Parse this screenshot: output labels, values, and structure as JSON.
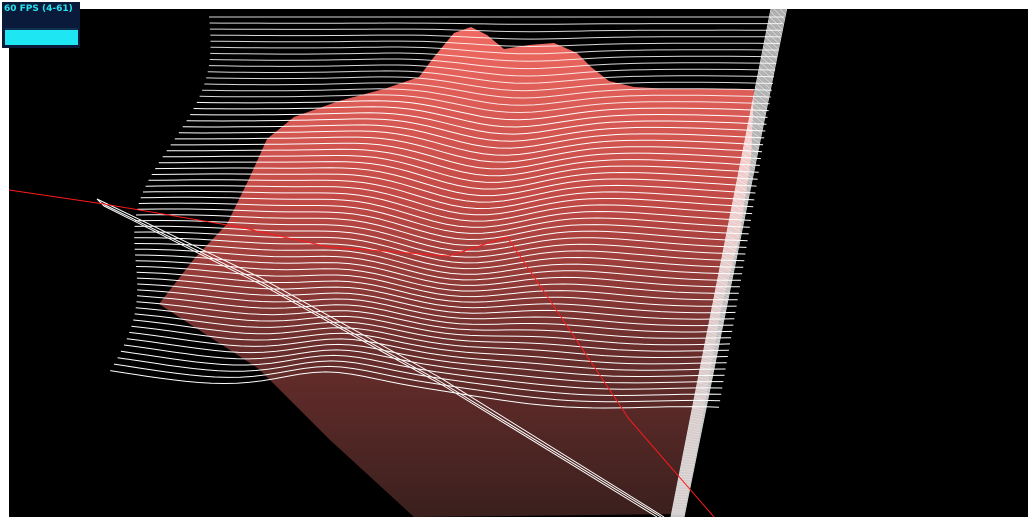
{
  "stats": {
    "fps_label": "60 FPS (4-61)",
    "colors": {
      "panel_background": "#0a1a3a",
      "text": "#27e3f0",
      "graph_bar": "#1ee6f2"
    }
  },
  "scene": {
    "background_color": "#000000",
    "wireframe_color": "#ffffff",
    "surface_color": "#e05a52",
    "axis_color": "#ff0000"
  }
}
